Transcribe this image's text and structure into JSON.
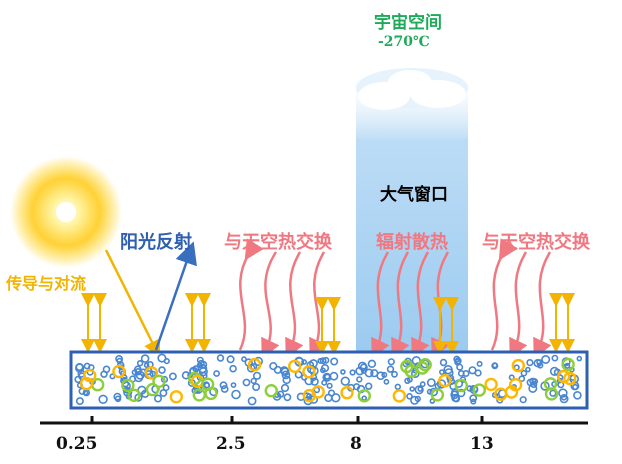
{
  "labels": {
    "space": "宇宙空间",
    "space_temp": "-270℃",
    "atmo_window": "大气窗口",
    "solar_reflection": "阳光反射",
    "sky_exchange_1": "与天空热交换",
    "radiative_dissipation": "辐射散热",
    "sky_exchange_2": "与天空热交换",
    "conduction_convection": "传导与对流"
  },
  "wavelength_ticks": [
    "0.25",
    "2.5",
    "8",
    "13"
  ],
  "colors": {
    "sun": "#ffd000",
    "solar_arrow": "#3a6fc0",
    "thermal_arrows": "#f07880",
    "conduction_arrows": "#f2b400",
    "layer_border": "#2e5fb0",
    "window_band": "#a9d4f2",
    "particles_blue": "#4a86d0",
    "particles_green": "#8ccf3a",
    "particles_yellow": "#ffb800"
  },
  "icons": [
    "sun-icon",
    "cloud-icon"
  ]
}
